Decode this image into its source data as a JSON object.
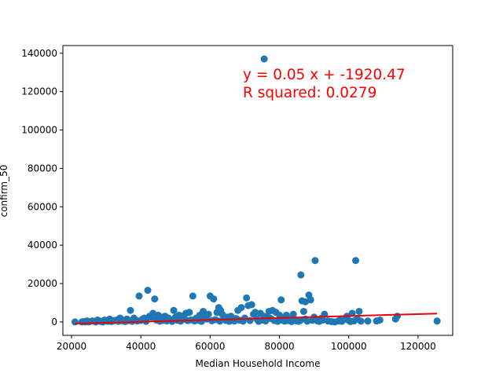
{
  "colors": {
    "points": "#1f77b4",
    "regression_line": "#e8000b",
    "annotation": "#ff0000",
    "axes": "#000000",
    "background": "#ffffff"
  },
  "chart_data": {
    "type": "scatter",
    "title": "",
    "xlabel": "Median Household Income",
    "ylabel": "confirm_50",
    "xlim": [
      17500,
      130000
    ],
    "ylim": [
      -7000,
      144000
    ],
    "xticks": [
      20000,
      40000,
      60000,
      80000,
      100000,
      120000
    ],
    "xtick_labels": [
      "20000",
      "40000",
      "60000",
      "80000",
      "100000",
      "120000"
    ],
    "yticks": [
      0,
      20000,
      40000,
      60000,
      80000,
      100000,
      120000,
      140000
    ],
    "ytick_labels": [
      "0",
      "20000",
      "40000",
      "60000",
      "80000",
      "100000",
      "120000",
      "140000"
    ],
    "grid": false,
    "annotations": [
      "y = 0.05 x + -1920.47",
      "R squared: 0.0279"
    ],
    "regression": {
      "slope": 0.05,
      "intercept": -1920.47,
      "r_squared": 0.0279
    },
    "points": [
      [
        75600,
        137000
      ],
      [
        90300,
        32000
      ],
      [
        102000,
        32000
      ],
      [
        86200,
        24500
      ],
      [
        42000,
        16500
      ],
      [
        39500,
        13500
      ],
      [
        44000,
        12000
      ],
      [
        60000,
        13500
      ],
      [
        61000,
        12000
      ],
      [
        55000,
        13500
      ],
      [
        70500,
        12500
      ],
      [
        80500,
        11500
      ],
      [
        88500,
        14000
      ],
      [
        86500,
        11000
      ],
      [
        87500,
        10500
      ],
      [
        89000,
        11500
      ],
      [
        71000,
        8500
      ],
      [
        72000,
        9000
      ],
      [
        69000,
        7500
      ],
      [
        37000,
        6000
      ],
      [
        62500,
        7500
      ],
      [
        63000,
        6000
      ],
      [
        77000,
        5500
      ],
      [
        78000,
        6000
      ],
      [
        79000,
        5000
      ],
      [
        49500,
        6000
      ],
      [
        54000,
        5000
      ],
      [
        58000,
        5500
      ],
      [
        68000,
        6000
      ],
      [
        73000,
        5000
      ],
      [
        74500,
        4500
      ],
      [
        82000,
        3500
      ],
      [
        84000,
        4000
      ],
      [
        87000,
        5500
      ],
      [
        93000,
        4000
      ],
      [
        103000,
        5500
      ],
      [
        101000,
        4500
      ],
      [
        99500,
        3000
      ],
      [
        114000,
        3000
      ],
      [
        113500,
        1500
      ],
      [
        125500,
        500
      ],
      [
        108000,
        500
      ],
      [
        109000,
        1000
      ],
      [
        105500,
        500
      ],
      [
        97000,
        500
      ],
      [
        99000,
        1500
      ],
      [
        101500,
        500
      ],
      [
        96000,
        0
      ],
      [
        91000,
        500
      ],
      [
        92500,
        1000
      ],
      [
        90000,
        2500
      ],
      [
        85000,
        500
      ],
      [
        83000,
        1500
      ],
      [
        81000,
        2000
      ],
      [
        80000,
        3500
      ],
      [
        76500,
        2500
      ],
      [
        75500,
        3000
      ],
      [
        72500,
        4000
      ],
      [
        66000,
        3000
      ],
      [
        65000,
        2500
      ],
      [
        64000,
        2000
      ],
      [
        63500,
        4000
      ],
      [
        62000,
        5000
      ],
      [
        59500,
        4000
      ],
      [
        58500,
        3000
      ],
      [
        57000,
        3500
      ],
      [
        56000,
        2000
      ],
      [
        53000,
        4500
      ],
      [
        52000,
        3000
      ],
      [
        51000,
        3500
      ],
      [
        50000,
        2500
      ],
      [
        48000,
        2000
      ],
      [
        47000,
        3000
      ],
      [
        46000,
        2500
      ],
      [
        45000,
        3500
      ],
      [
        43500,
        4500
      ],
      [
        43000,
        2500
      ],
      [
        42500,
        3000
      ],
      [
        41000,
        2000
      ],
      [
        40500,
        1500
      ],
      [
        38500,
        1000
      ],
      [
        38000,
        2000
      ],
      [
        36000,
        1500
      ],
      [
        35000,
        1000
      ],
      [
        34000,
        2000
      ],
      [
        33000,
        1000
      ],
      [
        32000,
        500
      ],
      [
        31000,
        1500
      ],
      [
        30000,
        500
      ],
      [
        29500,
        1000
      ],
      [
        29000,
        0
      ],
      [
        28000,
        500
      ],
      [
        27500,
        1000
      ],
      [
        27000,
        0
      ],
      [
        26000,
        500
      ],
      [
        25000,
        0
      ],
      [
        24500,
        500
      ],
      [
        24000,
        0
      ],
      [
        23500,
        200
      ],
      [
        23000,
        0
      ],
      [
        21000,
        0
      ],
      [
        28500,
        200
      ],
      [
        30500,
        300
      ],
      [
        31500,
        200
      ],
      [
        32500,
        800
      ],
      [
        33500,
        300
      ],
      [
        34500,
        600
      ],
      [
        35500,
        200
      ],
      [
        36500,
        700
      ],
      [
        37500,
        300
      ],
      [
        39000,
        500
      ],
      [
        40000,
        800
      ],
      [
        41500,
        300
      ],
      [
        44500,
        1000
      ],
      [
        45500,
        400
      ],
      [
        46500,
        800
      ],
      [
        47500,
        500
      ],
      [
        48500,
        1200
      ],
      [
        49000,
        300
      ],
      [
        50500,
        900
      ],
      [
        51500,
        400
      ],
      [
        52500,
        1500
      ],
      [
        53500,
        700
      ],
      [
        54500,
        1100
      ],
      [
        55500,
        500
      ],
      [
        56500,
        900
      ],
      [
        57500,
        300
      ],
      [
        59000,
        1500
      ],
      [
        60500,
        600
      ],
      [
        61500,
        1200
      ],
      [
        62800,
        400
      ],
      [
        64500,
        800
      ],
      [
        65500,
        300
      ],
      [
        66500,
        1200
      ],
      [
        67000,
        500
      ],
      [
        67500,
        1800
      ],
      [
        68500,
        900
      ],
      [
        69500,
        400
      ],
      [
        70000,
        2000
      ],
      [
        71500,
        700
      ],
      [
        73500,
        1500
      ],
      [
        74000,
        300
      ],
      [
        75000,
        1000
      ],
      [
        76000,
        500
      ],
      [
        77500,
        1800
      ],
      [
        78500,
        700
      ],
      [
        79500,
        300
      ],
      [
        80800,
        900
      ],
      [
        81500,
        400
      ],
      [
        82500,
        700
      ],
      [
        83500,
        200
      ],
      [
        84500,
        1100
      ],
      [
        85500,
        300
      ],
      [
        86000,
        700
      ],
      [
        87500,
        1500
      ],
      [
        88000,
        400
      ],
      [
        89500,
        900
      ],
      [
        91500,
        300
      ],
      [
        92000,
        1800
      ],
      [
        94000,
        500
      ],
      [
        95000,
        200
      ],
      [
        97500,
        1000
      ],
      [
        98000,
        300
      ],
      [
        100000,
        800
      ],
      [
        100500,
        200
      ],
      [
        102500,
        1500
      ],
      [
        103500,
        400
      ]
    ]
  }
}
